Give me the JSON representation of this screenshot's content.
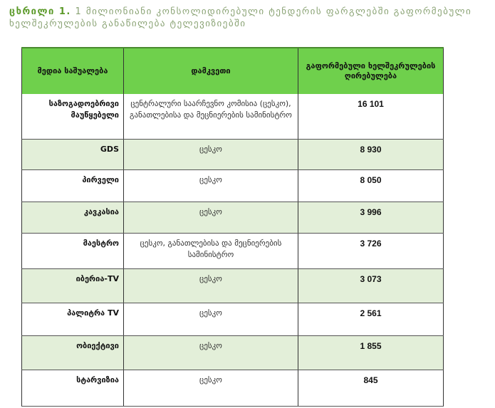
{
  "caption": {
    "label": "ცხრილი 1.",
    "text": "1 მილიონიანი კონსოლიდირებული ტენდერის ფარგლებში გაფორმებული ხელშეკრულების განაწილება ტელევიზიებში"
  },
  "table": {
    "headers": [
      "მედია საშუალება",
      "დამკვეთი",
      "გაფორმებული ხელშეკრულების ღირებულება"
    ],
    "rows": [
      {
        "media": "საზოგადოებრივი მაუწყებელი",
        "customer": "ცენტრალური საარჩევნო კომისია (ცესკო), განათლებისა და მეცნიერების სამინისტრო",
        "value": "16 101"
      },
      {
        "media": "GDS",
        "customer": "ცესკო",
        "value": "8 930"
      },
      {
        "media": "პირველი",
        "customer": "ცესკო",
        "value": "8 050"
      },
      {
        "media": "კავკასია",
        "customer": "ცესკო",
        "value": "3 996"
      },
      {
        "media": "მაესტრო",
        "customer": "ცესკო, განათლებისა და მეცნიერების სამინისტრო",
        "value": "3 726"
      },
      {
        "media": "იბერია-TV",
        "customer": "ცესკო",
        "value": "3 073"
      },
      {
        "media": "პალიტრა TV",
        "customer": "ცესკო",
        "value": "2 561"
      },
      {
        "media": "ობიექტივი",
        "customer": "ცესკო",
        "value": "1 855"
      },
      {
        "media": "სტარვიზია",
        "customer": "ცესკო",
        "value": "845"
      }
    ]
  },
  "colors": {
    "header_bg": "#6fd04c",
    "shade_bg": "#e3efd9",
    "caption": "#8aa374"
  }
}
